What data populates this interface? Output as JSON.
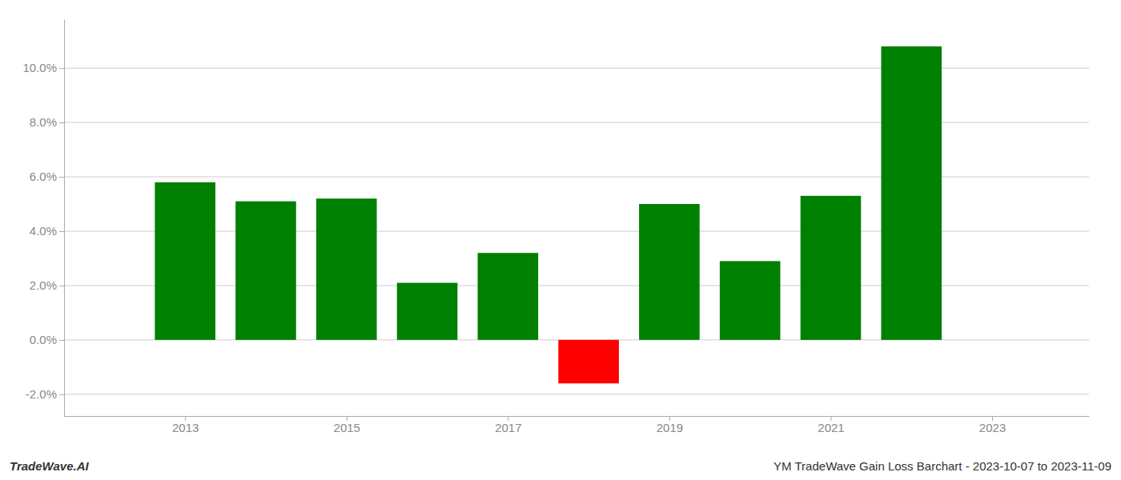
{
  "chart_data": {
    "type": "bar",
    "title": "YM TradeWave Gain Loss Barchart - 2023-10-07 to 2023-11-09",
    "annotations": [
      "TradeWave.AI"
    ],
    "x": [
      2013,
      2014,
      2015,
      2016,
      2017,
      2018,
      2019,
      2020,
      2021,
      2022
    ],
    "values": [
      0.058,
      0.051,
      0.052,
      0.021,
      0.032,
      -0.016,
      0.05,
      0.029,
      0.053,
      0.108
    ],
    "colors": [
      "#008000",
      "#008000",
      "#008000",
      "#008000",
      "#008000",
      "#ff0000",
      "#008000",
      "#008000",
      "#008000",
      "#008000"
    ],
    "xlim": [
      2011.5,
      2024.2
    ],
    "xticks": [
      2013,
      2015,
      2017,
      2019,
      2021,
      2023
    ],
    "ylim": [
      -0.028,
      0.118
    ],
    "yticks": [
      {
        "value": -0.02,
        "label": "-2.0%"
      },
      {
        "value": 0.0,
        "label": "0.0%"
      },
      {
        "value": 0.02,
        "label": "2.0%"
      },
      {
        "value": 0.04,
        "label": "4.0%"
      },
      {
        "value": 0.06,
        "label": "6.0%"
      },
      {
        "value": 0.08,
        "label": "8.0%"
      },
      {
        "value": 0.1,
        "label": "10.0%"
      }
    ],
    "grid": true
  }
}
